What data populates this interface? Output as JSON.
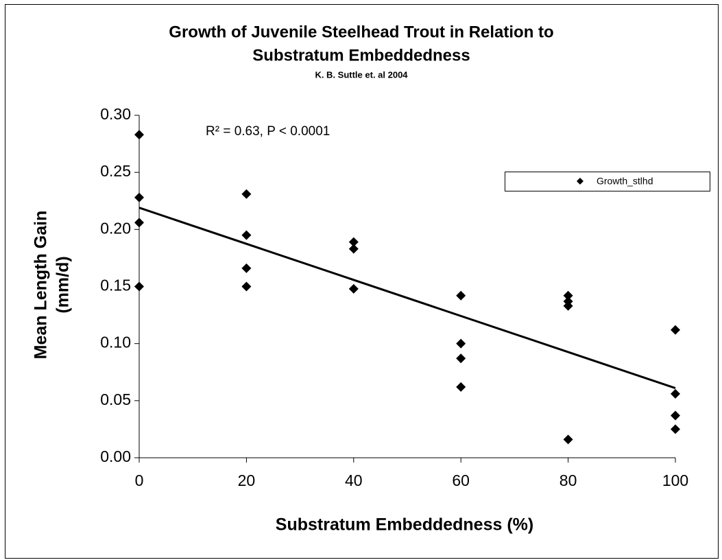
{
  "chart_data": {
    "type": "scatter",
    "title": [
      "Growth of Juvenile Steelhead Trout in Relation to",
      "Substratum Embeddedness"
    ],
    "subtitle": "K. B. Suttle et. al 2004",
    "x_label": "Substratum Embeddedness (%)",
    "y_label": [
      "Mean Length Gain",
      "(mm/d)"
    ],
    "annotation": "R² = 0.63,  P < 0.0001",
    "series": [
      {
        "name": "Growth_stlhd",
        "color": "#000000",
        "x": [
          0,
          0,
          0,
          0,
          20,
          20,
          20,
          20,
          40,
          40,
          40,
          60,
          60,
          60,
          60,
          80,
          80,
          80,
          80,
          100,
          100,
          100,
          100
        ],
        "values": [
          0.283,
          0.228,
          0.206,
          0.15,
          0.231,
          0.195,
          0.166,
          0.15,
          0.189,
          0.183,
          0.148,
          0.142,
          0.1,
          0.087,
          0.062,
          0.142,
          0.137,
          0.133,
          0.016,
          0.112,
          0.056,
          0.037,
          0.025
        ]
      }
    ],
    "trendline": {
      "color": "#000000",
      "x": [
        0,
        100
      ],
      "values": [
        0.219,
        0.061
      ]
    },
    "xlim": [
      0,
      100
    ],
    "xticks": [
      0,
      20,
      40,
      60,
      80,
      100
    ],
    "ylim": [
      0,
      0.3
    ],
    "yticks": [
      {
        "value": 0,
        "label": "0.00"
      },
      {
        "value": 0.05,
        "label": "0.05"
      },
      {
        "value": 0.1,
        "label": "0.10"
      },
      {
        "value": 0.15,
        "label": "0.15"
      },
      {
        "value": 0.2,
        "label": "0.20"
      },
      {
        "value": 0.25,
        "label": "0.25"
      },
      {
        "value": 0.3,
        "label": "0.30"
      }
    ],
    "grid": false,
    "legend": "upper right"
  }
}
